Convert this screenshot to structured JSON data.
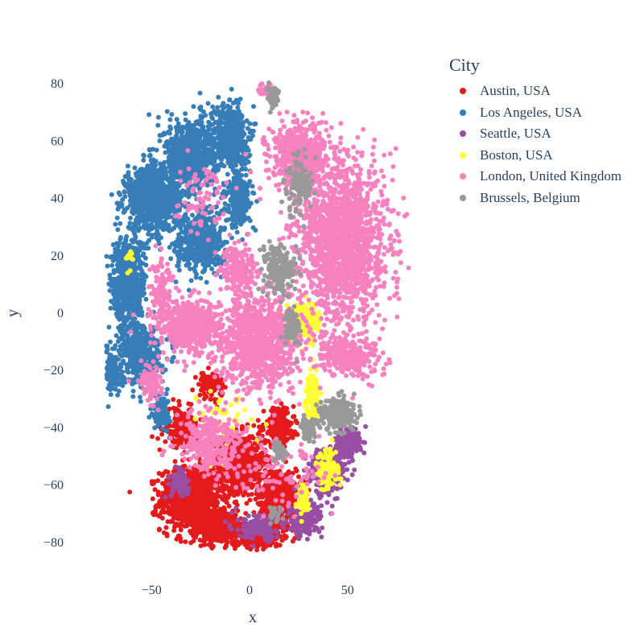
{
  "chart_data": {
    "type": "scatter",
    "xlabel": "x",
    "ylabel": "y",
    "xlim": [
      -73,
      90
    ],
    "ylim": [
      -90,
      90
    ],
    "xticks": [
      -50,
      0,
      50
    ],
    "xtick_labels": [
      "−50",
      "0",
      "50"
    ],
    "yticks": [
      80,
      60,
      40,
      20,
      0,
      -20,
      -40,
      -60,
      -80
    ],
    "ytick_labels": [
      "80",
      "60",
      "40",
      "20",
      "0",
      "−20",
      "−40",
      "−60",
      "−80"
    ],
    "grid": false,
    "legend": {
      "title": "City",
      "placement": "top-right"
    },
    "series": [
      {
        "name": "Austin, USA",
        "color": "#e41a1c",
        "clusters": [
          [
            -30,
            -65,
            14,
            10,
            900
          ],
          [
            -5,
            -52,
            12,
            9,
            700
          ],
          [
            15,
            -65,
            10,
            10,
            500
          ],
          [
            -15,
            -75,
            12,
            5,
            400
          ],
          [
            15,
            -40,
            7,
            6,
            250
          ],
          [
            5,
            -78,
            10,
            3,
            300
          ],
          [
            -35,
            -40,
            8,
            6,
            200
          ],
          [
            -20,
            -25,
            6,
            4,
            100
          ]
        ]
      },
      {
        "name": "Los Angeles, USA",
        "color": "#377eb8",
        "clusters": [
          [
            -50,
            40,
            12,
            10,
            900
          ],
          [
            -30,
            55,
            12,
            12,
            700
          ],
          [
            -10,
            62,
            8,
            10,
            500
          ],
          [
            -62,
            10,
            8,
            15,
            600
          ],
          [
            -55,
            -15,
            9,
            10,
            450
          ],
          [
            -25,
            25,
            12,
            10,
            500
          ],
          [
            -70,
            -20,
            4,
            7,
            150
          ],
          [
            -45,
            -35,
            4,
            5,
            100
          ],
          [
            -5,
            40,
            6,
            8,
            250
          ]
        ]
      },
      {
        "name": "Seattle, USA",
        "color": "#984ea3",
        "clusters": [
          [
            40,
            -55,
            8,
            7,
            350
          ],
          [
            50,
            -45,
            6,
            4,
            200
          ],
          [
            28,
            -72,
            8,
            5,
            200
          ],
          [
            5,
            -75,
            10,
            4,
            150
          ],
          [
            -35,
            -60,
            5,
            4,
            80
          ]
        ]
      },
      {
        "name": "Boston, USA",
        "color": "#ffff33",
        "clusters": [
          [
            28,
            -3,
            7,
            6,
            200
          ],
          [
            32,
            -30,
            3,
            8,
            150
          ],
          [
            40,
            -55,
            5,
            6,
            150
          ],
          [
            27,
            -65,
            3,
            5,
            60
          ],
          [
            -15,
            -40,
            15,
            10,
            60
          ],
          [
            -62,
            18,
            3,
            3,
            10
          ]
        ]
      },
      {
        "name": "London, United Kingdom",
        "color": "#f781bf",
        "clusters": [
          [
            48,
            25,
            20,
            25,
            1700
          ],
          [
            25,
            55,
            14,
            10,
            500
          ],
          [
            5,
            -10,
            18,
            15,
            1000
          ],
          [
            -30,
            -5,
            15,
            8,
            600
          ],
          [
            -20,
            -45,
            15,
            10,
            300
          ],
          [
            50,
            -15,
            15,
            6,
            300
          ],
          [
            -5,
            15,
            8,
            8,
            200
          ],
          [
            -45,
            10,
            6,
            10,
            100
          ],
          [
            -50,
            -25,
            6,
            6,
            100
          ],
          [
            15,
            -55,
            20,
            10,
            100
          ],
          [
            -25,
            40,
            12,
            10,
            80
          ],
          [
            8,
            78,
            4,
            2,
            40
          ]
        ]
      },
      {
        "name": "Brussels, Belgium",
        "color": "#999999",
        "clusters": [
          [
            12,
            75,
            3,
            3,
            60
          ],
          [
            25,
            45,
            6,
            10,
            120
          ],
          [
            15,
            15,
            7,
            8,
            200
          ],
          [
            22,
            -5,
            4,
            6,
            80
          ],
          [
            45,
            -35,
            8,
            5,
            250
          ],
          [
            30,
            -40,
            4,
            4,
            60
          ],
          [
            15,
            -48,
            4,
            3,
            40
          ],
          [
            13,
            -70,
            3,
            3,
            20
          ]
        ]
      }
    ]
  }
}
